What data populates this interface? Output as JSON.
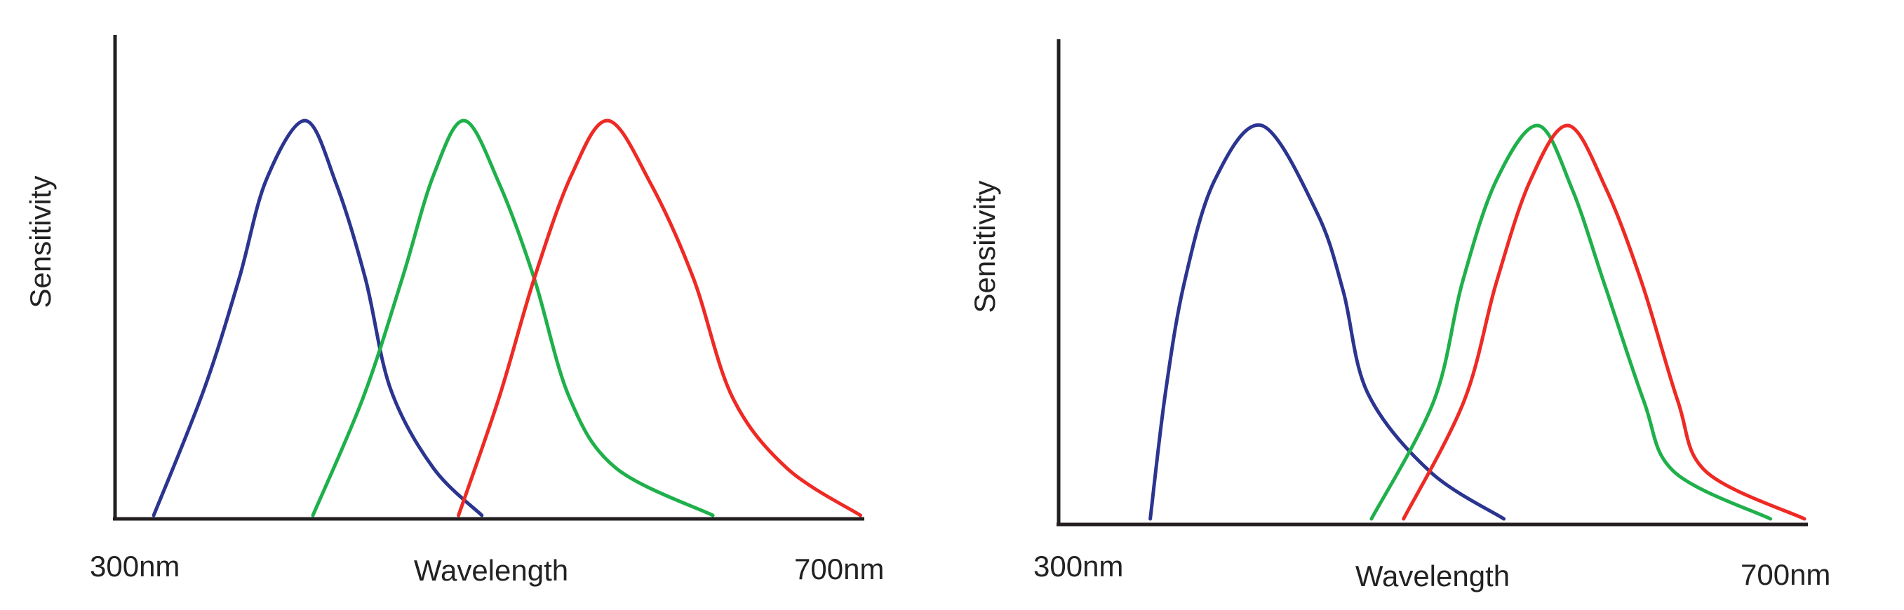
{
  "chart_data": [
    {
      "type": "line",
      "ylabel": "Sensitivity",
      "xlabel": "Wavelength",
      "x_tick_labels": [
        "300nm",
        "700nm"
      ],
      "xlim": [
        300,
        700
      ],
      "ylim": [
        0,
        1
      ],
      "grid": false,
      "series": [
        {
          "color": "#2b3590",
          "x": [
            334,
            360,
            378,
            392,
            412,
            428,
            443,
            456,
            478,
            503
          ],
          "y": [
            0.0,
            0.32,
            0.6,
            0.85,
            1.0,
            0.84,
            0.6,
            0.32,
            0.12,
            0.0
          ]
        },
        {
          "color": "#1fb04b",
          "x": [
            416,
            442,
            462,
            478,
            494,
            512,
            530,
            548,
            572,
            622
          ],
          "y": [
            0.0,
            0.3,
            0.6,
            0.86,
            1.0,
            0.84,
            0.6,
            0.3,
            0.12,
            0.0
          ]
        },
        {
          "color": "#ee2a24",
          "x": [
            491,
            512,
            530,
            549,
            568,
            590,
            612,
            632,
            660,
            698
          ],
          "y": [
            0.0,
            0.3,
            0.6,
            0.86,
            1.0,
            0.84,
            0.6,
            0.3,
            0.12,
            0.0
          ]
        }
      ]
    },
    {
      "type": "line",
      "ylabel": "Sensitivity",
      "xlabel": "Wavelength",
      "x_tick_labels": [
        "300nm",
        "700nm"
      ],
      "xlim": [
        300,
        700
      ],
      "ylim": [
        0,
        1
      ],
      "grid": false,
      "series": [
        {
          "color": "#2b3590",
          "x": [
            357,
            365,
            375,
            391,
            416,
            445,
            459,
            472,
            505,
            544
          ],
          "y": [
            0.0,
            0.32,
            0.6,
            0.86,
            1.0,
            0.78,
            0.58,
            0.32,
            0.12,
            0.0
          ]
        },
        {
          "color": "#1fb04b",
          "x": [
            474,
            507,
            522,
            540,
            562,
            580,
            597,
            618,
            634,
            685
          ],
          "y": [
            0.0,
            0.3,
            0.6,
            0.86,
            1.0,
            0.84,
            0.6,
            0.3,
            0.12,
            0.0
          ]
        },
        {
          "color": "#ee2a24",
          "x": [
            491,
            523,
            540,
            558,
            578,
            598,
            617,
            636,
            651,
            703
          ],
          "y": [
            0.0,
            0.3,
            0.6,
            0.86,
            1.0,
            0.84,
            0.6,
            0.3,
            0.12,
            0.0
          ]
        }
      ]
    }
  ]
}
